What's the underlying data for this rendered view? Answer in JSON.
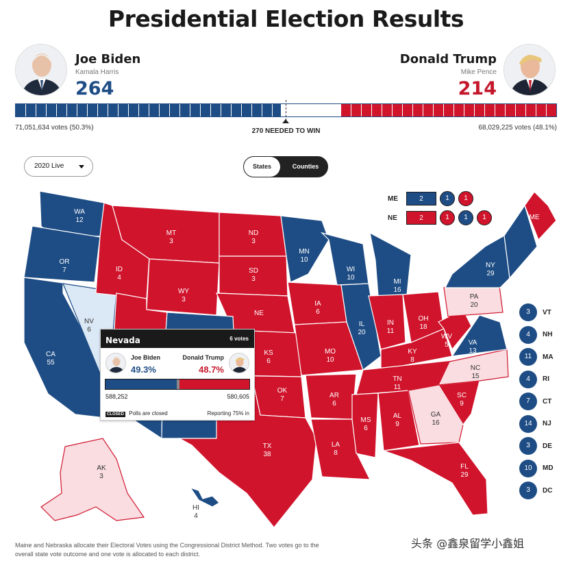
{
  "title": "Presidential Election Results",
  "colors": {
    "dem": "#1e4d85",
    "rep": "#d0142c",
    "dem_lean": "#dbe8f6",
    "rep_lean": "#f9dde1",
    "dark": "#1a1a1a"
  },
  "dem": {
    "name": "Joe Biden",
    "running_mate": "Kamala Harris",
    "electoral_votes": "264",
    "popular": "71,051,634 votes (50.3%)"
  },
  "rep": {
    "name": "Donald Trump",
    "running_mate": "Mike Pence",
    "electoral_votes": "214",
    "popular": "68,029,225 votes (48.1%)"
  },
  "needed": "270 NEEDED TO WIN",
  "electoral_bar": {
    "total": 538,
    "dem": 264,
    "undecided": 60,
    "rep": 214
  },
  "controls": {
    "dropdown_value": "2020 Live",
    "toggle_states": "States",
    "toggle_counties": "Counties"
  },
  "states": [
    {
      "abbr": "WA",
      "votes": "12"
    },
    {
      "abbr": "OR",
      "votes": "7"
    },
    {
      "abbr": "CA",
      "votes": "55"
    },
    {
      "abbr": "NV",
      "votes": "6"
    },
    {
      "abbr": "ID",
      "votes": "4"
    },
    {
      "abbr": "MT",
      "votes": "3"
    },
    {
      "abbr": "WY",
      "votes": "3"
    },
    {
      "abbr": "ND",
      "votes": "3"
    },
    {
      "abbr": "SD",
      "votes": "3"
    },
    {
      "abbr": "NE",
      "votes": ""
    },
    {
      "abbr": "KS",
      "votes": "6"
    },
    {
      "abbr": "OK",
      "votes": "7"
    },
    {
      "abbr": "TX",
      "votes": "38"
    },
    {
      "abbr": "MN",
      "votes": "10"
    },
    {
      "abbr": "IA",
      "votes": "6"
    },
    {
      "abbr": "MO",
      "votes": "10"
    },
    {
      "abbr": "AR",
      "votes": "6"
    },
    {
      "abbr": "LA",
      "votes": "8"
    },
    {
      "abbr": "WI",
      "votes": "10"
    },
    {
      "abbr": "IL",
      "votes": "20"
    },
    {
      "abbr": "MI",
      "votes": "16"
    },
    {
      "abbr": "IN",
      "votes": "11"
    },
    {
      "abbr": "OH",
      "votes": "18"
    },
    {
      "abbr": "KY",
      "votes": "8"
    },
    {
      "abbr": "TN",
      "votes": "11"
    },
    {
      "abbr": "MS",
      "votes": "6"
    },
    {
      "abbr": "AL",
      "votes": "9"
    },
    {
      "abbr": "GA",
      "votes": "16"
    },
    {
      "abbr": "FL",
      "votes": "29"
    },
    {
      "abbr": "SC",
      "votes": "9"
    },
    {
      "abbr": "NC",
      "votes": "15"
    },
    {
      "abbr": "VA",
      "votes": "13"
    },
    {
      "abbr": "WV",
      "votes": "5"
    },
    {
      "abbr": "PA",
      "votes": "20"
    },
    {
      "abbr": "NY",
      "votes": "29"
    },
    {
      "abbr": "ME",
      "votes": ""
    },
    {
      "abbr": "AK",
      "votes": "3"
    },
    {
      "abbr": "HI",
      "votes": "4"
    }
  ],
  "splits": {
    "me": {
      "label": "ME",
      "statewide": "2",
      "districts": [
        "1",
        "1"
      ]
    },
    "ne": {
      "label": "NE",
      "statewide": "2",
      "districts": [
        "1",
        "1",
        "1"
      ]
    }
  },
  "small_states": [
    {
      "abbr": "VT",
      "votes": "3"
    },
    {
      "abbr": "NH",
      "votes": "4"
    },
    {
      "abbr": "MA",
      "votes": "11"
    },
    {
      "abbr": "RI",
      "votes": "4"
    },
    {
      "abbr": "CT",
      "votes": "7"
    },
    {
      "abbr": "NJ",
      "votes": "14"
    },
    {
      "abbr": "DE",
      "votes": "3"
    },
    {
      "abbr": "MD",
      "votes": "10"
    },
    {
      "abbr": "DC",
      "votes": "3"
    }
  ],
  "tooltip": {
    "state": "Nevada",
    "votes": "6 votes",
    "dem_name": "Joe Biden",
    "rep_name": "Donald Trump",
    "dem_pct": "49.3%",
    "rep_pct": "48.7%",
    "dem_share": 49.3,
    "rep_share": 48.7,
    "dem_count": "588,252",
    "rep_count": "580,605",
    "badge": "CLOSED",
    "status": "Polls are closed",
    "reporting": "Reporting 75% in"
  },
  "footnote": "Maine and Nebraska allocate their Electoral Votes using the Congressional District Method. Two votes go to the overall state vote outcome and one vote is allocated to each district.",
  "watermark": "头条 @鑫泉留学小鑫姐"
}
